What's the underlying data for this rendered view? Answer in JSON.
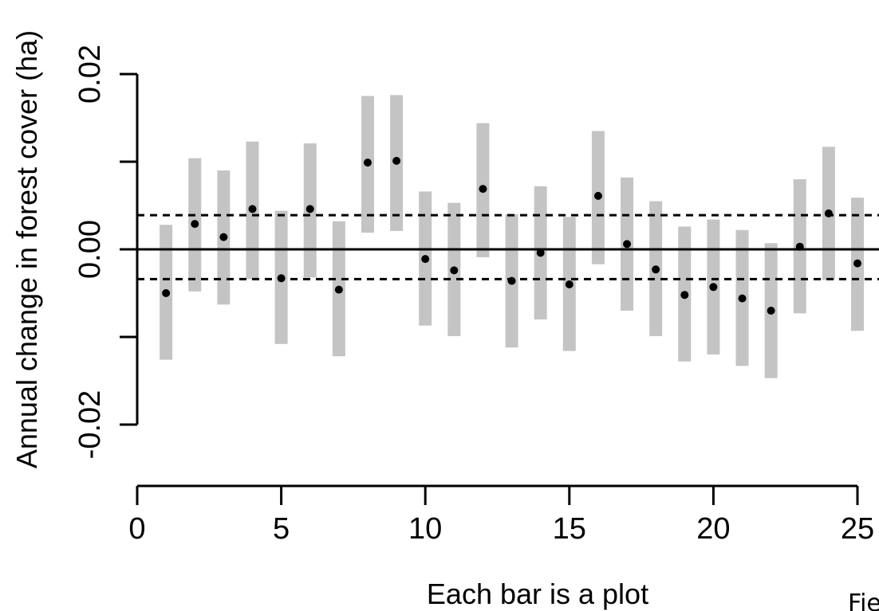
{
  "chart_data": {
    "type": "scatter",
    "title": "",
    "xlabel": "Each bar is a plot",
    "ylabel": "Annual change in forest cover (ha)",
    "xlim": [
      0,
      25
    ],
    "ylim": [
      -0.02,
      0.02
    ],
    "x_ticks": [
      0,
      5,
      10,
      15,
      20,
      25
    ],
    "y_ticks": [
      0.02,
      0.0,
      -0.02
    ],
    "x_tick_labels": [
      "0",
      "5",
      "10",
      "15",
      "20",
      "25"
    ],
    "y_tick_labels": [
      "0.02",
      "0.00",
      "-0.02"
    ],
    "reference_lines": {
      "zero": 0.0,
      "dashed": [
        0.0039,
        -0.0034
      ]
    },
    "grid": false,
    "legend": "none",
    "colors": {
      "interval": "#c4c4c4",
      "point": "#000000",
      "line": "#000000"
    },
    "points": [
      {
        "x": 1,
        "y": -0.005,
        "low": -0.0126,
        "high": 0.0028
      },
      {
        "x": 2,
        "y": 0.0029,
        "low": -0.0048,
        "high": 0.0104
      },
      {
        "x": 3,
        "y": 0.0014,
        "low": -0.0063,
        "high": 0.009
      },
      {
        "x": 4,
        "y": 0.0046,
        "low": -0.0034,
        "high": 0.0123
      },
      {
        "x": 5,
        "y": -0.0033,
        "low": -0.0108,
        "high": 0.0044
      },
      {
        "x": 6,
        "y": 0.0046,
        "low": -0.0032,
        "high": 0.0121
      },
      {
        "x": 7,
        "y": -0.0046,
        "low": -0.0122,
        "high": 0.0032
      },
      {
        "x": 8,
        "y": 0.0099,
        "low": 0.0019,
        "high": 0.0175
      },
      {
        "x": 9,
        "y": 0.0101,
        "low": 0.0021,
        "high": 0.0176
      },
      {
        "x": 10,
        "y": -0.0011,
        "low": -0.0087,
        "high": 0.0066
      },
      {
        "x": 11,
        "y": -0.0024,
        "low": -0.0099,
        "high": 0.0053
      },
      {
        "x": 12,
        "y": 0.0069,
        "low": -0.0009,
        "high": 0.0144
      },
      {
        "x": 13,
        "y": -0.0036,
        "low": -0.0112,
        "high": 0.004
      },
      {
        "x": 14,
        "y": -0.0004,
        "low": -0.008,
        "high": 0.0072
      },
      {
        "x": 15,
        "y": -0.004,
        "low": -0.0116,
        "high": 0.0037
      },
      {
        "x": 16,
        "y": 0.0061,
        "low": -0.0017,
        "high": 0.0135
      },
      {
        "x": 17,
        "y": 0.0006,
        "low": -0.007,
        "high": 0.0082
      },
      {
        "x": 18,
        "y": -0.0023,
        "low": -0.0099,
        "high": 0.0055
      },
      {
        "x": 19,
        "y": -0.0052,
        "low": -0.0128,
        "high": 0.0026
      },
      {
        "x": 20,
        "y": -0.0043,
        "low": -0.012,
        "high": 0.0034
      },
      {
        "x": 21,
        "y": -0.0056,
        "low": -0.0133,
        "high": 0.0022
      },
      {
        "x": 22,
        "y": -0.007,
        "low": -0.0147,
        "high": 0.0007
      },
      {
        "x": 23,
        "y": 0.0003,
        "low": -0.0073,
        "high": 0.008
      },
      {
        "x": 24,
        "y": 0.0041,
        "low": -0.0035,
        "high": 0.0117
      },
      {
        "x": 25,
        "y": -0.0016,
        "low": -0.0093,
        "high": 0.0059
      }
    ]
  },
  "corner_text": "Fie"
}
